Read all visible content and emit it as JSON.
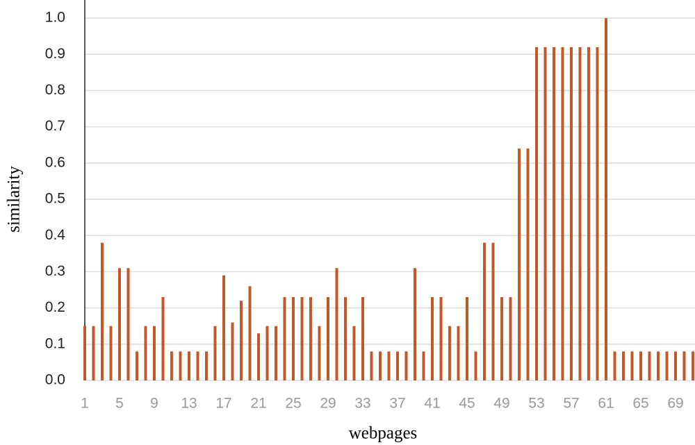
{
  "chart_data": {
    "type": "bar",
    "x_label": "webpages",
    "y_label": "similarity",
    "categories": [
      1,
      null,
      null,
      null,
      5,
      null,
      null,
      null,
      9,
      null,
      null,
      null,
      13,
      null,
      null,
      null,
      17,
      null,
      null,
      null,
      21,
      null,
      null,
      null,
      25,
      null,
      null,
      null,
      29,
      null,
      null,
      null,
      33,
      null,
      null,
      null,
      37,
      null,
      null,
      null,
      41,
      null,
      null,
      null,
      45,
      null,
      null,
      null,
      49,
      null,
      null,
      null,
      53,
      null,
      null,
      null,
      57,
      null,
      null,
      null,
      61,
      null,
      null,
      null,
      65,
      null,
      null,
      null,
      69,
      null,
      null
    ],
    "values": [
      0.15,
      0.15,
      0.38,
      0.15,
      0.31,
      0.31,
      0.08,
      0.15,
      0.15,
      0.23,
      0.08,
      0.08,
      0.08,
      0.08,
      0.08,
      0.15,
      0.29,
      0.16,
      0.22,
      0.26,
      0.13,
      0.15,
      0.15,
      0.23,
      0.23,
      0.23,
      0.23,
      0.15,
      0.23,
      0.31,
      0.23,
      0.15,
      0.23,
      0.08,
      0.08,
      0.08,
      0.08,
      0.08,
      0.31,
      0.08,
      0.23,
      0.23,
      0.15,
      0.15,
      0.23,
      0.08,
      0.38,
      0.38,
      0.23,
      0.23,
      0.64,
      0.64,
      0.92,
      0.92,
      0.92,
      0.92,
      0.92,
      0.92,
      0.92,
      0.92,
      1.0,
      0.08,
      0.08,
      0.08,
      0.08,
      0.08,
      0.08,
      0.08,
      0.08,
      0.08,
      0.08
    ],
    "color": "#c0582a",
    "ylim": [
      0,
      1.05
    ],
    "yticks": [
      {
        "value": 0,
        "label": "0.0"
      },
      0.1,
      0.2,
      0.3,
      0.4,
      0.5,
      0.6,
      0.7,
      0.8,
      0.9,
      {
        "value": 1,
        "label": "1.0"
      }
    ],
    "grid": true
  }
}
